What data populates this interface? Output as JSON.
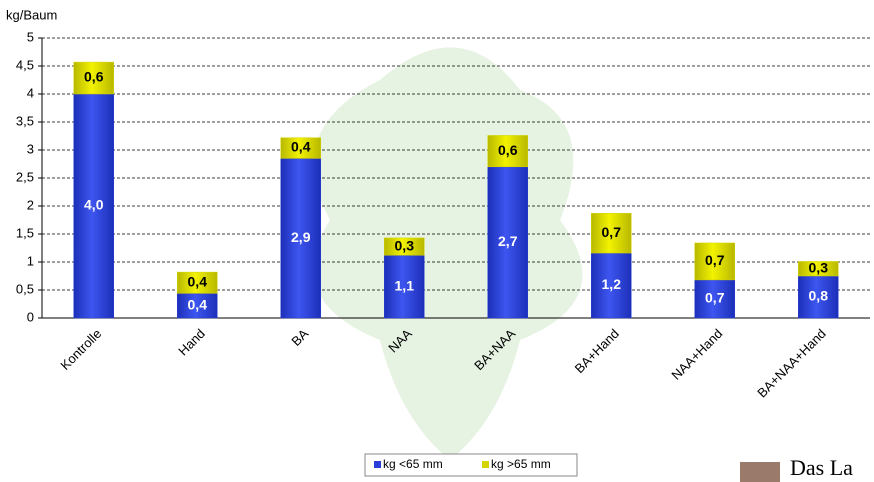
{
  "chart_data": {
    "type": "stacked-bar",
    "y_label": "kg/Baum",
    "categories": [
      "Kontrolle",
      "Hand",
      "BA",
      "NAA",
      "BA+NAA",
      "BA+Hand",
      "NAA+Hand",
      "BA+NAA+Hand"
    ],
    "series": [
      {
        "name": "kg <65 mm",
        "color": "#2a3fd8",
        "values": [
          4.0,
          0.44,
          2.85,
          1.12,
          2.7,
          1.16,
          0.68,
          0.75
        ],
        "value_labels": [
          "4,0",
          "0,4",
          "2,9",
          "1,1",
          "2,7",
          "1,2",
          "0,7",
          "0,8"
        ]
      },
      {
        "name": "kg >65 mm",
        "color": "#d4d400",
        "values": [
          0.57,
          0.38,
          0.37,
          0.31,
          0.56,
          0.71,
          0.66,
          0.26
        ],
        "value_labels": [
          "0,6",
          "0,4",
          "0,4",
          "0,3",
          "0,6",
          "0,7",
          "0,7",
          "0,3"
        ]
      }
    ],
    "ylim": [
      0,
      5
    ],
    "yticks": [
      0,
      {
        "value": 0.5,
        "label": "0,5"
      },
      1,
      {
        "value": 1.5,
        "label": "1,5"
      },
      2,
      {
        "value": 2.5,
        "label": "2,5"
      },
      3,
      {
        "value": 3.5,
        "label": "3,5"
      },
      4,
      {
        "value": 4.5,
        "label": "4,5"
      },
      5
    ],
    "grid": true
  },
  "logo": "Das La"
}
